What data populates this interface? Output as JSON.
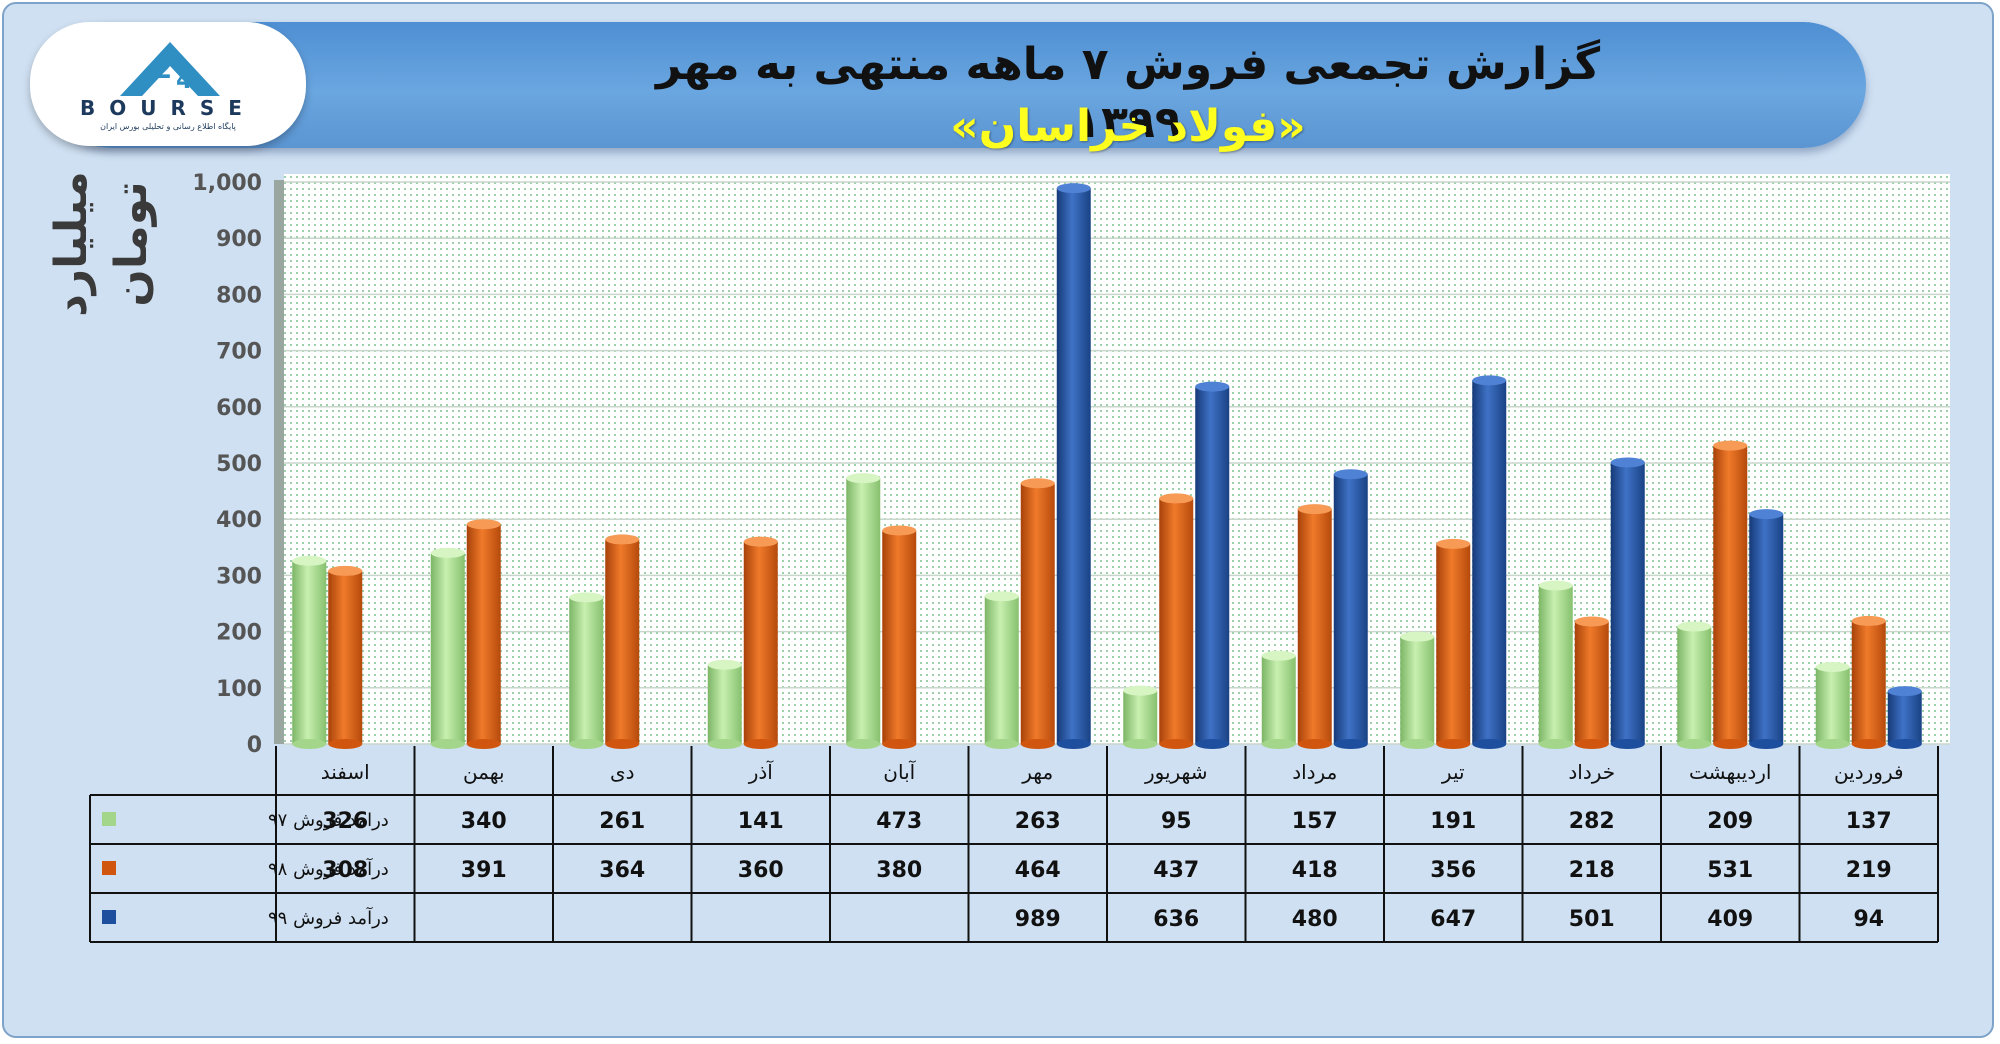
{
  "header": {
    "title": "گزارش تجمعی فروش ۷ ماهه منتهی به مهر ۱۳۹۹",
    "subtitle": "«فولاد خراسان»"
  },
  "logo": {
    "name": "BOURSE",
    "caption": "پایگاه اطلاع رسانی و تحلیلی بورس ایران",
    "icon": "24-bourse-logo-icon"
  },
  "chart_data": {
    "type": "bar",
    "title": "گزارش تجمعی فروش ۷ ماهه منتهی به مهر ۱۳۹۹",
    "subtitle": "«فولاد خراسان»",
    "ylabel": "میلیارد تومان",
    "ylim": [
      0,
      1000
    ],
    "yticks": [
      "0",
      "100",
      "200",
      "300",
      "400",
      "500",
      "600",
      "700",
      "800",
      "900",
      "1,000"
    ],
    "grid": true,
    "legend": "data-table-left",
    "categories": [
      "فروردین",
      "اردیبهشت",
      "خرداد",
      "تیر",
      "مرداد",
      "شهریور",
      "مهر",
      "آبان",
      "آذر",
      "دی",
      "بهمن",
      "اسفند"
    ],
    "series": [
      {
        "name": "درامد فروش ۹۷",
        "color": "#a3d58a",
        "values": [
          137,
          209,
          282,
          191,
          157,
          95,
          263,
          473,
          141,
          261,
          340,
          326
        ]
      },
      {
        "name": "درآمد فروش ۹۸",
        "color": "#d0560f",
        "values": [
          219,
          531,
          218,
          356,
          418,
          437,
          464,
          380,
          360,
          364,
          391,
          308
        ]
      },
      {
        "name": "درآمد فروش ۹۹",
        "color": "#1e4e9e",
        "values": [
          94,
          409,
          501,
          647,
          480,
          636,
          989,
          null,
          null,
          null,
          null,
          null
        ]
      }
    ]
  }
}
